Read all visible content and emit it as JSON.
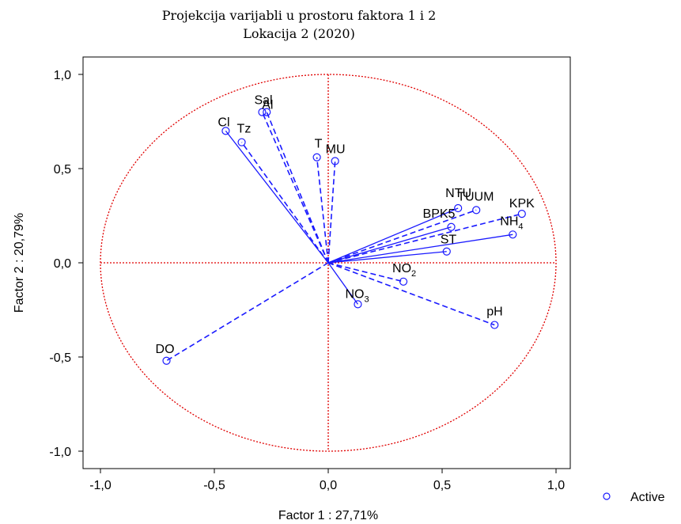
{
  "chart_data": {
    "type": "scatter",
    "title": [
      "Projekcija varijabli u prostoru faktora 1 i 2",
      "Lokacija 2  (2020)"
    ],
    "xlabel": "Factor 1 : 27,71%",
    "ylabel": "Factor 2 : 20,79%",
    "xlim": [
      -1.1,
      1.1
    ],
    "ylim": [
      -1.1,
      1.1
    ],
    "x_ticks": [
      -1.0,
      -0.5,
      0.0,
      0.5,
      1.0
    ],
    "y_ticks": [
      -1.0,
      -0.5,
      0.0,
      0.5,
      1.0
    ],
    "x_tick_labels": [
      "-1,0",
      "-0,5",
      "0,0",
      "0,5",
      "1,0"
    ],
    "y_tick_labels": [
      "-1,0",
      "-0,5",
      "0,0",
      "0,5",
      "1,0"
    ],
    "unit_circle": true,
    "legend": {
      "label": "Active",
      "position": "bottom-right"
    },
    "colors": {
      "vectors": "#1a1aff",
      "reference": "#e00000",
      "frame": "#000000"
    },
    "points": [
      {
        "label": "Sal",
        "sub": "",
        "x": -0.29,
        "y": 0.8,
        "style": "dash"
      },
      {
        "label": "Al",
        "sub": "",
        "x": -0.27,
        "y": 0.8,
        "style": "dash"
      },
      {
        "label": "Cl",
        "sub": "",
        "x": -0.45,
        "y": 0.7,
        "style": "solid"
      },
      {
        "label": "Tz",
        "sub": "",
        "x": -0.38,
        "y": 0.64,
        "style": "dash"
      },
      {
        "label": "T",
        "sub": "",
        "x": -0.05,
        "y": 0.56,
        "style": "dash"
      },
      {
        "label": "MU",
        "sub": "",
        "x": 0.03,
        "y": 0.54,
        "style": "dash"
      },
      {
        "label": "NTU",
        "sub": "",
        "x": 0.57,
        "y": 0.29,
        "style": "solid"
      },
      {
        "label": "TUUM",
        "sub": "",
        "x": 0.65,
        "y": 0.28,
        "style": "dash"
      },
      {
        "label": "BPK5",
        "sub": "",
        "x": 0.54,
        "y": 0.19,
        "style": "solid"
      },
      {
        "label": "KPK",
        "sub": "",
        "x": 0.85,
        "y": 0.26,
        "style": "dash"
      },
      {
        "label": "NH",
        "sub": "4",
        "x": 0.81,
        "y": 0.15,
        "style": "solid"
      },
      {
        "label": "ST",
        "sub": "",
        "x": 0.52,
        "y": 0.06,
        "style": "solid"
      },
      {
        "label": "NO",
        "sub": "2",
        "x": 0.33,
        "y": -0.1,
        "style": "dash"
      },
      {
        "label": "NO",
        "sub": "3",
        "x": 0.13,
        "y": -0.22,
        "style": "solid"
      },
      {
        "label": "pH",
        "sub": "",
        "x": 0.73,
        "y": -0.33,
        "style": "dash"
      },
      {
        "label": "DO",
        "sub": "",
        "x": -0.71,
        "y": -0.52,
        "style": "dash"
      }
    ]
  }
}
